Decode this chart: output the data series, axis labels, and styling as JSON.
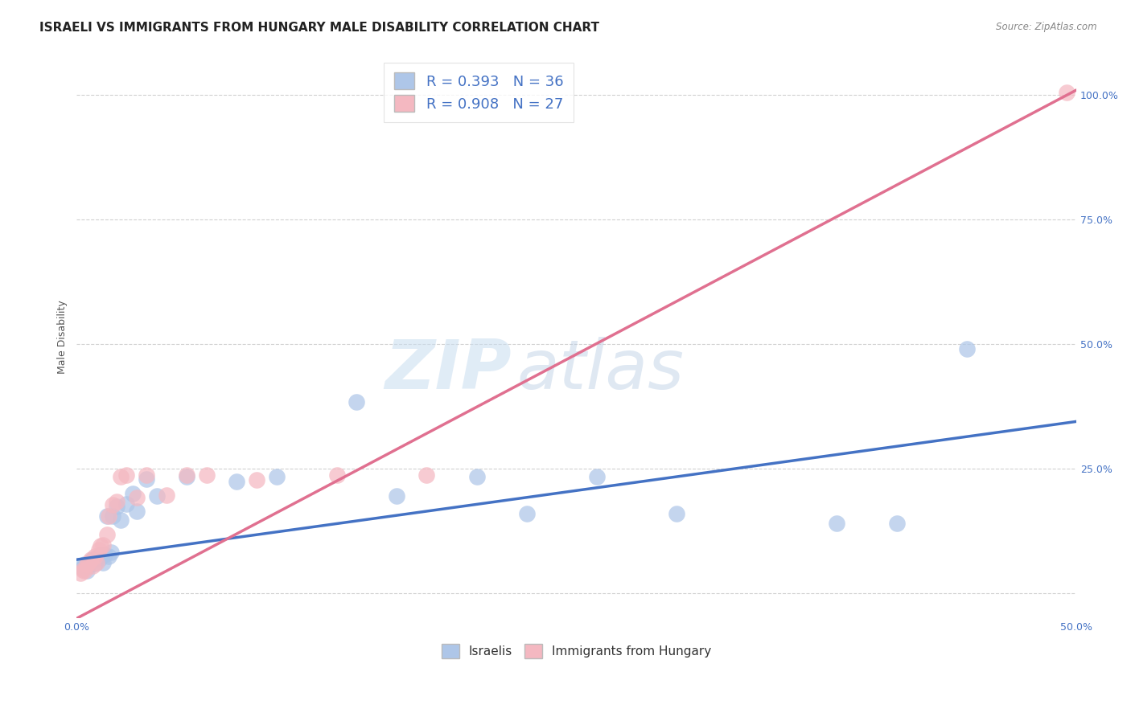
{
  "title": "ISRAELI VS IMMIGRANTS FROM HUNGARY MALE DISABILITY CORRELATION CHART",
  "source": "Source: ZipAtlas.com",
  "ylabel": "Male Disability",
  "xlim": [
    0.0,
    0.5
  ],
  "ylim": [
    -0.05,
    1.08
  ],
  "yticks": [
    0.0,
    0.25,
    0.5,
    0.75,
    1.0
  ],
  "ytick_labels": [
    "",
    "25.0%",
    "50.0%",
    "75.0%",
    "100.0%"
  ],
  "xticks": [
    0.0,
    0.05,
    0.1,
    0.15,
    0.2,
    0.25,
    0.3,
    0.35,
    0.4,
    0.45,
    0.5
  ],
  "xtick_labels": [
    "0.0%",
    "",
    "",
    "",
    "",
    "",
    "",
    "",
    "",
    "",
    "50.0%"
  ],
  "israeli_R": 0.393,
  "israeli_N": 36,
  "hungary_R": 0.908,
  "hungary_N": 27,
  "israeli_color": "#aec6e8",
  "hungarian_color": "#f4b8c1",
  "israeli_line_color": "#4472c4",
  "hungarian_line_color": "#e07090",
  "background_color": "#ffffff",
  "grid_color": "#cccccc",
  "title_fontsize": 11,
  "axis_label_fontsize": 9,
  "tick_fontsize": 9,
  "tick_label_color": "#4472c4",
  "israeli_points_x": [
    0.002,
    0.003,
    0.004,
    0.005,
    0.006,
    0.007,
    0.008,
    0.009,
    0.01,
    0.011,
    0.012,
    0.013,
    0.014,
    0.016,
    0.018,
    0.02,
    0.022,
    0.025,
    0.03,
    0.035,
    0.04,
    0.055,
    0.08,
    0.1,
    0.14,
    0.16,
    0.2,
    0.225,
    0.26,
    0.3,
    0.38,
    0.41,
    0.445,
    0.015,
    0.017,
    0.028
  ],
  "israeli_points_y": [
    0.055,
    0.05,
    0.058,
    0.045,
    0.055,
    0.065,
    0.068,
    0.06,
    0.072,
    0.068,
    0.078,
    0.062,
    0.078,
    0.075,
    0.155,
    0.175,
    0.148,
    0.18,
    0.165,
    0.23,
    0.195,
    0.235,
    0.225,
    0.235,
    0.385,
    0.195,
    0.235,
    0.16,
    0.235,
    0.16,
    0.14,
    0.14,
    0.49,
    0.155,
    0.082,
    0.2
  ],
  "hungarian_points_x": [
    0.002,
    0.003,
    0.004,
    0.005,
    0.006,
    0.007,
    0.008,
    0.009,
    0.01,
    0.011,
    0.012,
    0.013,
    0.015,
    0.016,
    0.018,
    0.02,
    0.022,
    0.025,
    0.03,
    0.035,
    0.045,
    0.055,
    0.065,
    0.09,
    0.13,
    0.175,
    0.495
  ],
  "hungarian_points_y": [
    0.04,
    0.048,
    0.045,
    0.058,
    0.062,
    0.068,
    0.055,
    0.075,
    0.062,
    0.088,
    0.095,
    0.098,
    0.118,
    0.155,
    0.178,
    0.185,
    0.235,
    0.238,
    0.192,
    0.238,
    0.198,
    0.238,
    0.238,
    0.228,
    0.238,
    0.238,
    1.005
  ],
  "hun_line_x0": 0.0,
  "hun_line_y0": -0.05,
  "hun_line_x1": 0.5,
  "hun_line_y1": 1.01,
  "isr_line_x0": 0.0,
  "isr_line_y0": 0.068,
  "isr_line_x1": 0.5,
  "isr_line_y1": 0.345
}
